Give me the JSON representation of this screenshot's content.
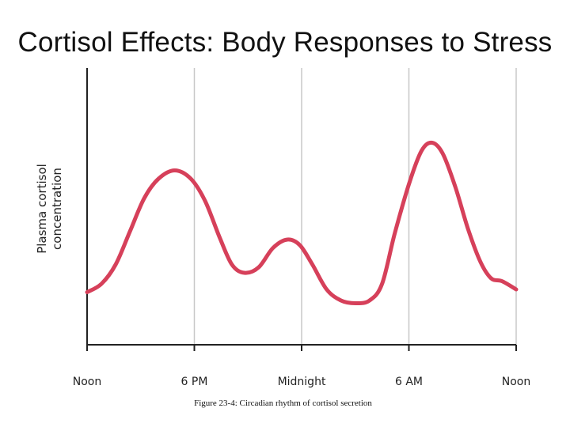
{
  "slide": {
    "title": "Cortisol Effects: Body Responses to Stress",
    "caption": "Figure 23-4: Circadian rhythm of cortisol secretion"
  },
  "chart_data": {
    "type": "line",
    "title": "",
    "xlabel": "",
    "ylabel_lines": [
      "Plasma cortisol",
      "concentration"
    ],
    "x_ticks": [
      "Noon",
      "6 PM",
      "Midnight",
      "6 AM",
      "Noon"
    ],
    "x_range": [
      0,
      24
    ],
    "y_range": [
      0,
      1
    ],
    "grid": "vertical",
    "legend": "none",
    "series": [
      {
        "color": "#d6405a",
        "points": [
          [
            0.0,
            0.19
          ],
          [
            0.8,
            0.22
          ],
          [
            1.6,
            0.29
          ],
          [
            2.4,
            0.41
          ],
          [
            3.2,
            0.53
          ],
          [
            4.0,
            0.6
          ],
          [
            4.9,
            0.63
          ],
          [
            5.8,
            0.6
          ],
          [
            6.6,
            0.52
          ],
          [
            7.4,
            0.39
          ],
          [
            8.1,
            0.29
          ],
          [
            8.8,
            0.26
          ],
          [
            9.6,
            0.28
          ],
          [
            10.4,
            0.35
          ],
          [
            11.2,
            0.38
          ],
          [
            11.9,
            0.36
          ],
          [
            12.6,
            0.29
          ],
          [
            13.4,
            0.2
          ],
          [
            14.2,
            0.16
          ],
          [
            15.0,
            0.15
          ],
          [
            15.8,
            0.16
          ],
          [
            16.5,
            0.22
          ],
          [
            17.2,
            0.4
          ],
          [
            18.0,
            0.58
          ],
          [
            18.7,
            0.7
          ],
          [
            19.3,
            0.73
          ],
          [
            19.9,
            0.69
          ],
          [
            20.6,
            0.57
          ],
          [
            21.3,
            0.42
          ],
          [
            22.0,
            0.3
          ],
          [
            22.6,
            0.24
          ],
          [
            23.2,
            0.23
          ],
          [
            24.0,
            0.2
          ]
        ]
      }
    ]
  }
}
